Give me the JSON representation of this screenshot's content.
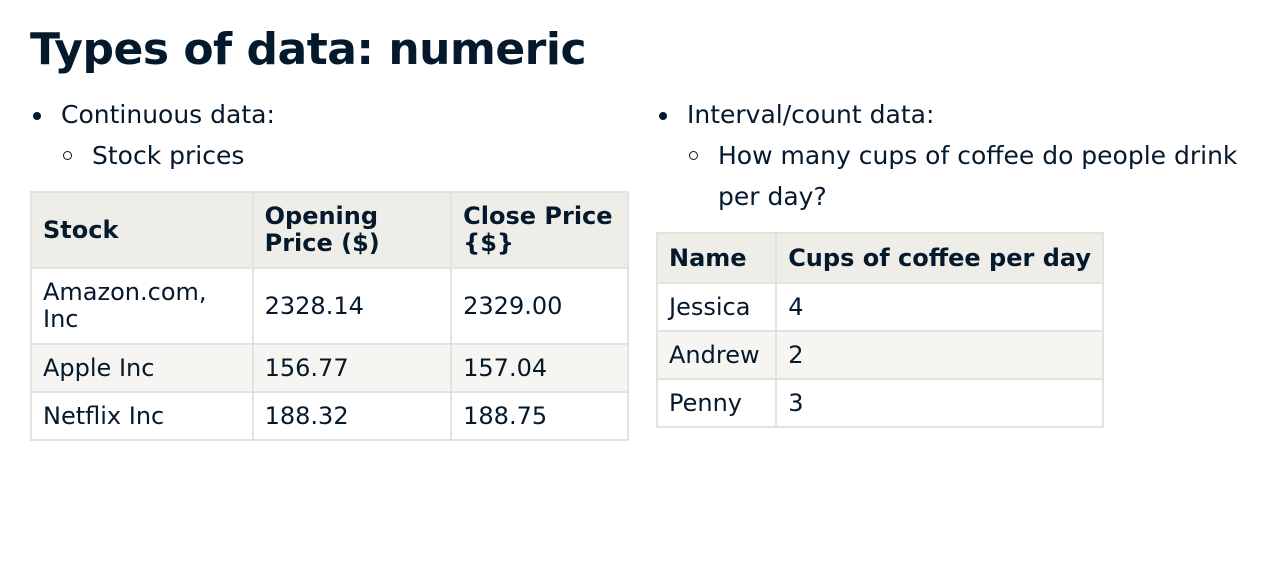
{
  "slide": {
    "title": "Types of data: numeric"
  },
  "left": {
    "bullet": "Continuous data:",
    "sub_bullet": "Stock prices",
    "table": {
      "headers": [
        "Stock",
        "Opening Price ($)",
        "Close Price {$}"
      ],
      "rows": [
        [
          "Amazon.com, Inc",
          "2328.14",
          "2329.00"
        ],
        [
          "Apple Inc",
          "156.77",
          "157.04"
        ],
        [
          "Netflix Inc",
          "188.32",
          "188.75"
        ]
      ]
    }
  },
  "right": {
    "bullet": "Interval/count data:",
    "sub_bullet": "How many cups of coffee do people drink per day?",
    "table": {
      "headers": [
        "Name",
        "Cups of coffee per day"
      ],
      "rows": [
        [
          "Jessica",
          "4"
        ],
        [
          "Andrew",
          "2"
        ],
        [
          "Penny",
          "3"
        ]
      ]
    }
  }
}
